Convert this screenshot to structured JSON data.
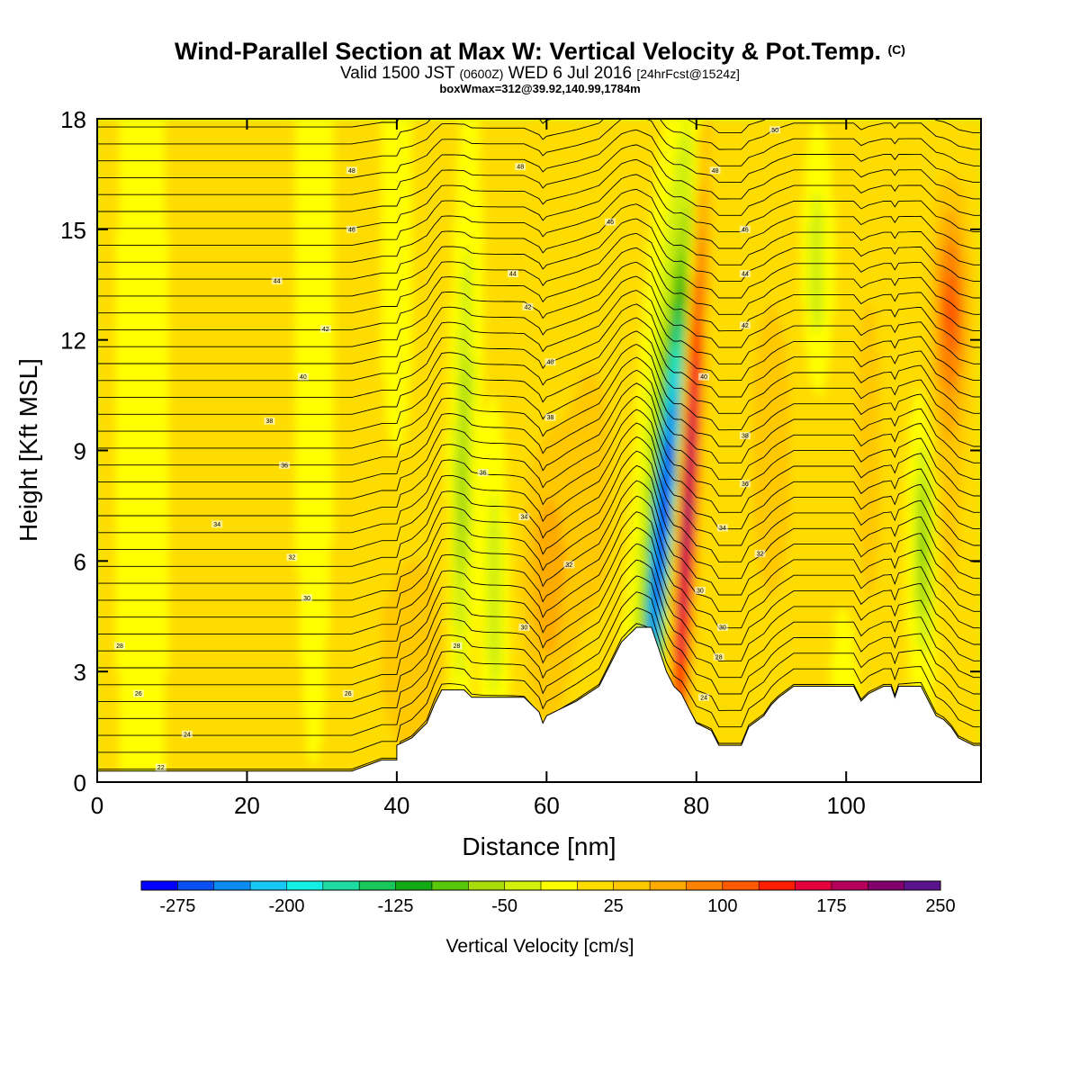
{
  "header": {
    "title": "Wind-Parallel Section at Max W: Vertical Velocity & Pot.Temp.",
    "title_mark": "(C)",
    "subtitle_a": "Valid 1500 JST",
    "subtitle_b": "(0600Z)",
    "subtitle_c": "WED 6 Jul 2016",
    "subtitle_d": "[24hrFcst@1524z]",
    "info_line": "boxWmax=312@39.92,140.99,1784m"
  },
  "chart_data": {
    "type": "heatmap",
    "xlabel": "Distance [nm]",
    "ylabel": "Height [Kft MSL]",
    "xlim": [
      0,
      118
    ],
    "ylim": [
      0,
      18
    ],
    "x_ticks": [
      "0",
      "20",
      "40",
      "60",
      "80",
      "100"
    ],
    "x_tick_values": [
      0,
      20,
      40,
      60,
      80,
      100
    ],
    "y_ticks": [
      "0",
      "3",
      "6",
      "9",
      "12",
      "15",
      "18"
    ],
    "y_tick_values": [
      0,
      3,
      6,
      9,
      12,
      15,
      18
    ],
    "grid": false,
    "colorbar": {
      "title": "Vertical Velocity [cm/s]",
      "min": -300,
      "step": 25,
      "colors": [
        "#0000ff",
        "#0a50f5",
        "#0a8cf0",
        "#19c8f5",
        "#14f0e6",
        "#1edca0",
        "#19c85a",
        "#14aa14",
        "#5ac80a",
        "#aadc0a",
        "#d2f00a",
        "#ffff00",
        "#ffdc00",
        "#ffc800",
        "#ffaa00",
        "#ff8200",
        "#ff5a00",
        "#ff1e00",
        "#e6003c",
        "#b4005a",
        "#82006e",
        "#5a148c"
      ],
      "tick_labels": [
        "-275",
        "-200",
        "-125",
        "-50",
        "25",
        "100",
        "175",
        "250"
      ],
      "tick_values": [
        -275,
        -200,
        -125,
        -50,
        25,
        100,
        175,
        250
      ]
    },
    "contour_labels": [
      {
        "x": 8.5,
        "y": 0.4,
        "text": "22"
      },
      {
        "x": 12,
        "y": 1.3,
        "text": "24"
      },
      {
        "x": 5.5,
        "y": 2.4,
        "text": "26"
      },
      {
        "x": 3,
        "y": 3.7,
        "text": "28"
      },
      {
        "x": 28,
        "y": 5.0,
        "text": "30"
      },
      {
        "x": 26,
        "y": 6.1,
        "text": "32"
      },
      {
        "x": 16,
        "y": 7.0,
        "text": "34"
      },
      {
        "x": 25,
        "y": 8.6,
        "text": "36"
      },
      {
        "x": 23,
        "y": 9.8,
        "text": "38"
      },
      {
        "x": 27.5,
        "y": 11.0,
        "text": "40"
      },
      {
        "x": 30.5,
        "y": 12.3,
        "text": "42"
      },
      {
        "x": 24,
        "y": 13.6,
        "text": "44"
      },
      {
        "x": 34,
        "y": 15.0,
        "text": "46"
      },
      {
        "x": 34,
        "y": 16.6,
        "text": "48"
      },
      {
        "x": 33.5,
        "y": 2.4,
        "text": "26"
      },
      {
        "x": 48,
        "y": 3.7,
        "text": "28"
      },
      {
        "x": 57,
        "y": 4.2,
        "text": "30"
      },
      {
        "x": 63,
        "y": 5.9,
        "text": "32"
      },
      {
        "x": 57,
        "y": 7.2,
        "text": "34"
      },
      {
        "x": 51.5,
        "y": 8.4,
        "text": "36"
      },
      {
        "x": 60.5,
        "y": 9.9,
        "text": "38"
      },
      {
        "x": 60.5,
        "y": 11.4,
        "text": "40"
      },
      {
        "x": 57.5,
        "y": 12.9,
        "text": "42"
      },
      {
        "x": 55.5,
        "y": 13.8,
        "text": "44"
      },
      {
        "x": 68.5,
        "y": 15.2,
        "text": "46"
      },
      {
        "x": 56.5,
        "y": 16.7,
        "text": "48"
      },
      {
        "x": 81,
        "y": 2.3,
        "text": "24"
      },
      {
        "x": 83,
        "y": 3.4,
        "text": "28"
      },
      {
        "x": 83.5,
        "y": 4.2,
        "text": "30"
      },
      {
        "x": 80.5,
        "y": 5.2,
        "text": "30"
      },
      {
        "x": 88.5,
        "y": 6.2,
        "text": "32"
      },
      {
        "x": 83.5,
        "y": 6.9,
        "text": "34"
      },
      {
        "x": 86.5,
        "y": 8.1,
        "text": "36"
      },
      {
        "x": 86.5,
        "y": 9.4,
        "text": "38"
      },
      {
        "x": 81,
        "y": 11.0,
        "text": "40"
      },
      {
        "x": 86.5,
        "y": 12.4,
        "text": "42"
      },
      {
        "x": 86.5,
        "y": 13.8,
        "text": "44"
      },
      {
        "x": 86.5,
        "y": 15.0,
        "text": "46"
      },
      {
        "x": 82.5,
        "y": 16.6,
        "text": "48"
      },
      {
        "x": 90.5,
        "y": 17.7,
        "text": "50"
      }
    ]
  }
}
